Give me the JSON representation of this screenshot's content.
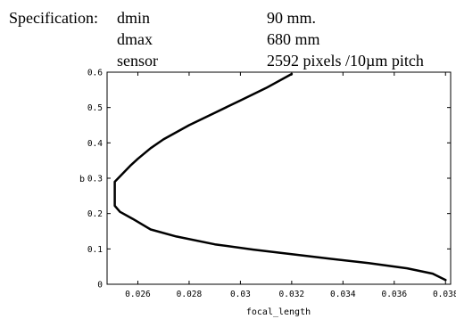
{
  "spec": {
    "heading": "Specification:",
    "rows": [
      {
        "label": "dmin",
        "value": "90 mm."
      },
      {
        "label": "dmax",
        "value": "680 mm"
      },
      {
        "label": "sensor",
        "value": "2592 pixels /10µm pitch"
      }
    ]
  },
  "chart_data": {
    "type": "line",
    "title": "",
    "xlabel": "focal_length",
    "ylabel": "b",
    "xlim": [
      0.0248,
      0.0382
    ],
    "ylim": [
      0,
      0.6
    ],
    "x_ticks": [
      "0.026",
      "0.028",
      "0.03",
      "0.032",
      "0.034",
      "0.036",
      "0.038"
    ],
    "y_ticks": [
      "0",
      "0.1",
      "0.2",
      "0.3",
      "0.4",
      "0.5",
      "0.6"
    ],
    "grid": false,
    "legend": "none",
    "series": [
      {
        "x": [
          0.032,
          0.031,
          0.03,
          0.029,
          0.028,
          0.027,
          0.0265,
          0.026,
          0.0257,
          0.0253,
          0.0251,
          0.0251,
          0.0251,
          0.0253,
          0.0258,
          0.0265,
          0.0275,
          0.029,
          0.0305,
          0.032,
          0.0335,
          0.035,
          0.0365,
          0.0375,
          0.038
        ],
        "y": [
          0.595,
          0.555,
          0.52,
          0.485,
          0.45,
          0.41,
          0.385,
          0.355,
          0.335,
          0.305,
          0.29,
          0.26,
          0.222,
          0.205,
          0.185,
          0.155,
          0.135,
          0.113,
          0.098,
          0.085,
          0.072,
          0.06,
          0.045,
          0.03,
          0.012
        ]
      }
    ]
  }
}
